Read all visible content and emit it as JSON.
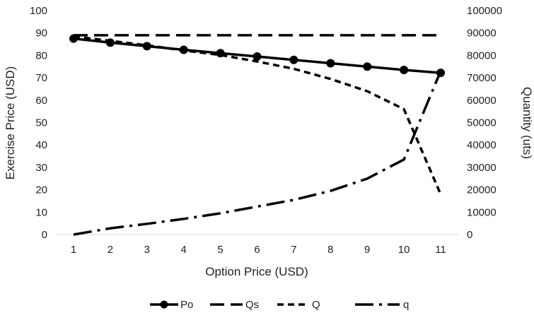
{
  "chart_data": {
    "type": "line",
    "xlabel": "Option Price (USD)",
    "ylabel_left": "Exercise Price (USD)",
    "ylabel_right": "Quantity (uts)",
    "categories": [
      "1",
      "2",
      "3",
      "4",
      "5",
      "6",
      "7",
      "8",
      "9",
      "10",
      "11"
    ],
    "ylim_left": [
      0,
      100
    ],
    "ylim_right": [
      0,
      100000
    ],
    "yticks_left": [
      "0",
      "10",
      "20",
      "30",
      "40",
      "50",
      "60",
      "70",
      "80",
      "90",
      "100"
    ],
    "yticks_right": [
      "0",
      "10000",
      "20000",
      "30000",
      "40000",
      "50000",
      "60000",
      "70000",
      "80000",
      "90000",
      "100000"
    ],
    "legend_position": "bottom",
    "series": [
      {
        "name": "Po",
        "axis": "left",
        "style": "solid-marker",
        "color": "#000000",
        "values": [
          87.5,
          85.7,
          84.1,
          82.5,
          81.0,
          79.5,
          78.0,
          76.5,
          75.0,
          73.5,
          72.2
        ]
      },
      {
        "name": "Qs",
        "axis": "right",
        "style": "long-dash",
        "color": "#000000",
        "values": [
          89000,
          89000,
          89000,
          89000,
          89000,
          89000,
          89000,
          89000,
          89000,
          89000,
          89000
        ]
      },
      {
        "name": "Q",
        "axis": "right",
        "style": "short-dash",
        "color": "#000000",
        "values": [
          88500,
          86500,
          84500,
          82200,
          80200,
          77300,
          74000,
          69500,
          64000,
          56000,
          18000
        ]
      },
      {
        "name": "q",
        "axis": "right",
        "style": "dash-dot",
        "color": "#000000",
        "values": [
          0,
          2800,
          4800,
          7000,
          9500,
          12500,
          15500,
          19500,
          25000,
          33500,
          73000
        ]
      }
    ]
  }
}
